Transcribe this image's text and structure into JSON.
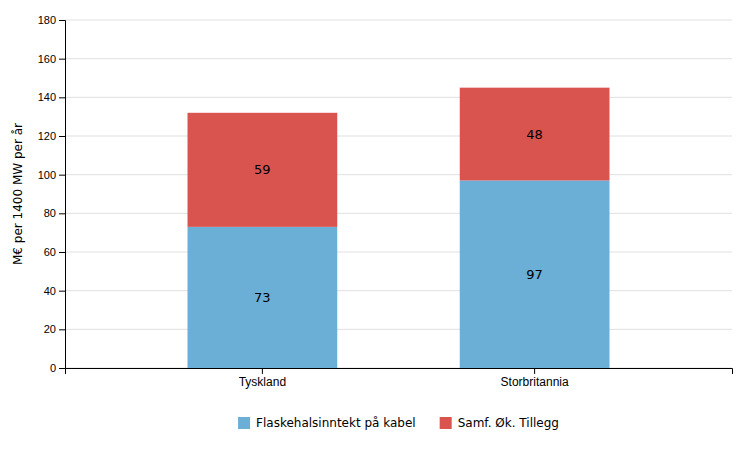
{
  "chart_data": {
    "type": "bar",
    "stacked": true,
    "categories": [
      "Tyskland",
      "Storbritannia"
    ],
    "series": [
      {
        "name": "Flaskehalsinntekt på kabel",
        "color": "#6BAED6",
        "values": [
          73,
          97
        ]
      },
      {
        "name": "Samf. Øk. Tillegg",
        "color": "#D9534F",
        "values": [
          59,
          48
        ]
      }
    ],
    "ylabel": "M€ per 1400 MW per år",
    "ylim": [
      0,
      180
    ],
    "yticks": [
      0,
      20,
      40,
      60,
      80,
      100,
      120,
      140,
      160,
      180
    ],
    "grid": true,
    "legend": "bottom",
    "data_labels": true
  }
}
